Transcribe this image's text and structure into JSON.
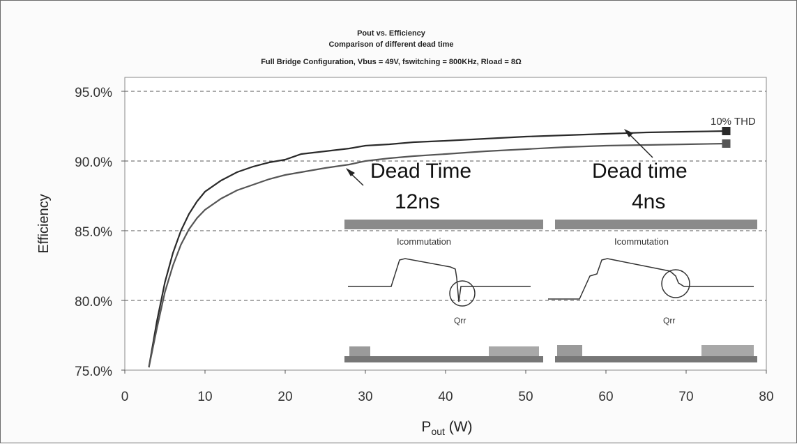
{
  "chart_data": {
    "type": "line",
    "title": [
      "Pout vs. Efficiency",
      "Comparison of different dead time",
      "Full Bridge Configuration, Vbus = 49V, fswitching = 800KHz, Rload = 8Ω"
    ],
    "xlabel_main": "P",
    "xlabel_sub": "out",
    "xlabel_unit": " (W)",
    "ylabel": "Efficiency",
    "xlim": [
      0,
      80
    ],
    "ylim": [
      75,
      96
    ],
    "x_ticks": [
      0,
      10,
      20,
      30,
      40,
      50,
      60,
      70,
      80
    ],
    "x_tick_labels": [
      "0",
      "10",
      "20",
      "30",
      "40",
      "50",
      "60",
      "70",
      "80"
    ],
    "y_ticks": [
      75,
      80,
      85,
      90,
      95
    ],
    "y_tick_labels": [
      "75.0%",
      "80.0%",
      "85.0%",
      "90.0%",
      "95.0%"
    ],
    "grid": "horizontal dashed",
    "series": [
      {
        "key": "dt4",
        "color": "#2a2a2a",
        "marker": "square",
        "points": [
          [
            3,
            75.2
          ],
          [
            4,
            78.5
          ],
          [
            5,
            81.3
          ],
          [
            6,
            83.4
          ],
          [
            7,
            85.0
          ],
          [
            8,
            86.2
          ],
          [
            9,
            87.1
          ],
          [
            10,
            87.8
          ],
          [
            12,
            88.6
          ],
          [
            14,
            89.2
          ],
          [
            16,
            89.6
          ],
          [
            18,
            89.9
          ],
          [
            20,
            90.1
          ],
          [
            22,
            90.5
          ],
          [
            25,
            90.7
          ],
          [
            28,
            90.9
          ],
          [
            30,
            91.1
          ],
          [
            33,
            91.2
          ],
          [
            36,
            91.35
          ],
          [
            40,
            91.45
          ],
          [
            45,
            91.6
          ],
          [
            50,
            91.75
          ],
          [
            55,
            91.85
          ],
          [
            60,
            91.95
          ],
          [
            65,
            92.05
          ],
          [
            70,
            92.1
          ],
          [
            75,
            92.15
          ]
        ]
      },
      {
        "key": "dt12",
        "color": "#555555",
        "marker": "square",
        "points": [
          [
            3,
            75.2
          ],
          [
            4,
            78.0
          ],
          [
            5,
            80.6
          ],
          [
            6,
            82.5
          ],
          [
            7,
            84.0
          ],
          [
            8,
            85.1
          ],
          [
            9,
            85.9
          ],
          [
            10,
            86.5
          ],
          [
            12,
            87.3
          ],
          [
            14,
            87.9
          ],
          [
            16,
            88.3
          ],
          [
            18,
            88.7
          ],
          [
            20,
            89.0
          ],
          [
            22,
            89.2
          ],
          [
            25,
            89.5
          ],
          [
            28,
            89.75
          ],
          [
            30,
            90.0
          ],
          [
            33,
            90.2
          ],
          [
            36,
            90.35
          ],
          [
            40,
            90.5
          ],
          [
            45,
            90.7
          ],
          [
            50,
            90.85
          ],
          [
            55,
            91.0
          ],
          [
            60,
            91.1
          ],
          [
            65,
            91.15
          ],
          [
            70,
            91.2
          ],
          [
            75,
            91.25
          ]
        ]
      }
    ],
    "annotations": {
      "thd": "10% THD",
      "dead_time_12_line1": "Dead Time",
      "dead_time_12_line2": "12ns",
      "dead_time_4_line1": "Dead time",
      "dead_time_4_line2": "4ns",
      "icommutation_left": "Icommutation",
      "icommutation_right": "Icommutation",
      "qrr_left": "Qrr",
      "qrr_right": "Qrr"
    }
  }
}
